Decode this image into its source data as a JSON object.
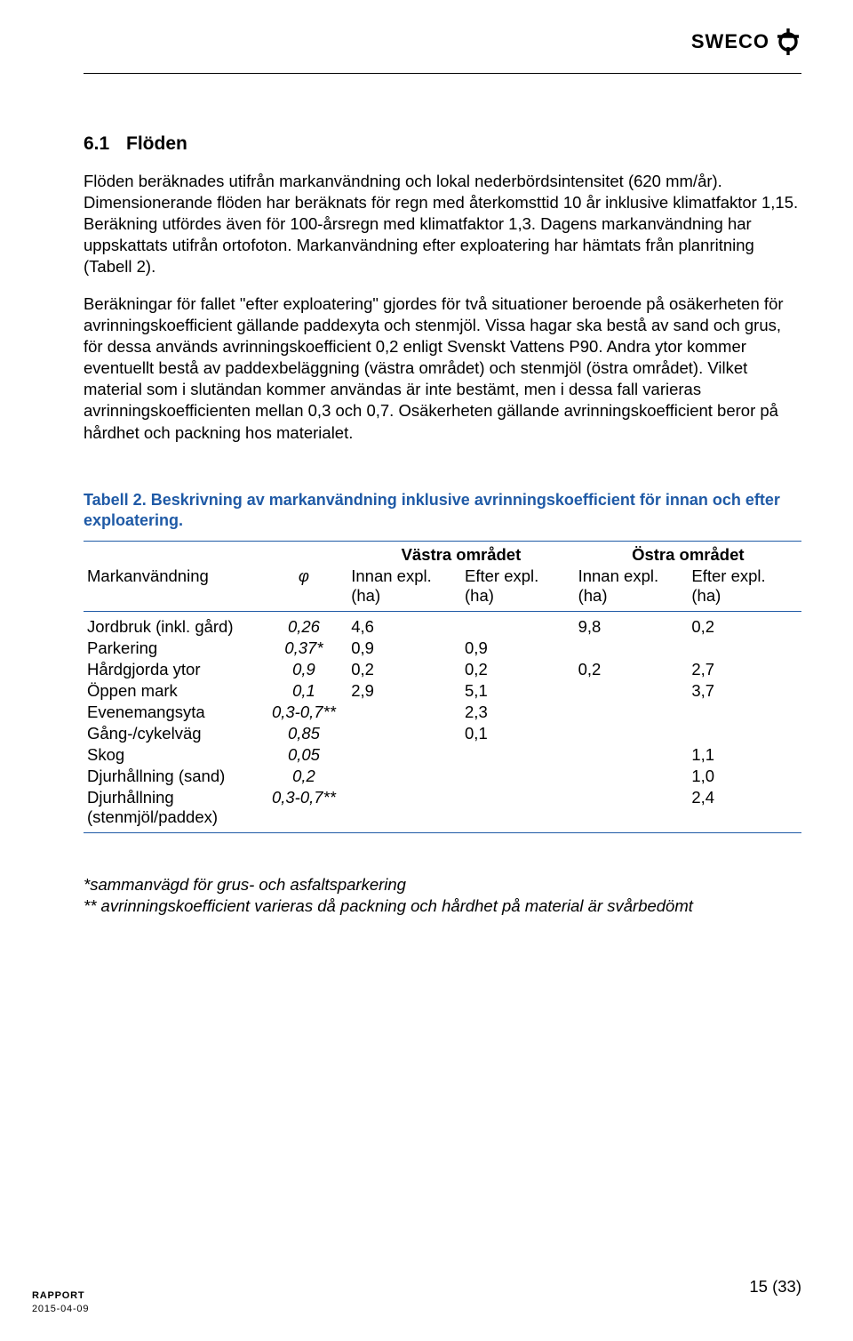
{
  "brand": {
    "name": "SWECO"
  },
  "section": {
    "number": "6.1",
    "title": "Flöden"
  },
  "paragraphs": {
    "p1": "Flöden beräknades utifrån markanvändning och lokal nederbördsintensitet (620 mm/år). Dimensionerande flöden har beräknats för regn med återkomsttid 10 år inklusive klimatfaktor 1,15. Beräkning utfördes även för 100-årsregn med klimatfaktor 1,3. Dagens markanvändning har uppskattats utifrån ortofoton. Markanvändning efter exploatering har hämtats från planritning (Tabell 2).",
    "p2": "Beräkningar för fallet \"efter exploatering\" gjordes för två situationer beroende på osäkerheten för avrinningskoefficient gällande paddexyta och stenmjöl. Vissa hagar ska bestå av sand och grus, för dessa används avrinningskoefficient 0,2 enligt Svenskt Vattens P90. Andra ytor kommer eventuellt bestå av paddexbeläggning (västra området) och stenmjöl (östra området). Vilket material som i slutändan kommer användas är inte bestämt, men i dessa fall varieras avrinningskoefficienten mellan 0,3 och 0,7. Osäkerheten gällande avrinningskoefficient beror på hårdhet och packning hos materialet."
  },
  "table": {
    "caption": "Tabell 2. Beskrivning av markanvändning inklusive avrinningskoefficient för innan och efter exploatering.",
    "super_head": {
      "vastra": "Västra området",
      "ostra": "Östra området"
    },
    "head": {
      "col_mark": "Markanvändning",
      "col_phi": "φ",
      "col_innan": "Innan expl.",
      "col_efter": "Efter expl.",
      "unit": "(ha)"
    },
    "rows": [
      {
        "label": "Jordbruk (inkl. gård)",
        "phi": "0,26",
        "v_innan": "4,6",
        "v_efter": "",
        "o_innan": "9,8",
        "o_efter": "0,2"
      },
      {
        "label": "Parkering",
        "phi": "0,37*",
        "v_innan": "0,9",
        "v_efter": "0,9",
        "o_innan": "",
        "o_efter": ""
      },
      {
        "label": "Hårdgjorda ytor",
        "phi": "0,9",
        "v_innan": "0,2",
        "v_efter": "0,2",
        "o_innan": "0,2",
        "o_efter": "2,7"
      },
      {
        "label": "Öppen mark",
        "phi": "0,1",
        "v_innan": "2,9",
        "v_efter": "5,1",
        "o_innan": "",
        "o_efter": "3,7"
      },
      {
        "label": "Evenemangsyta",
        "phi": "0,3-0,7**",
        "v_innan": "",
        "v_efter": "2,3",
        "o_innan": "",
        "o_efter": ""
      },
      {
        "label": "Gång-/cykelväg",
        "phi": "0,85",
        "v_innan": "",
        "v_efter": "0,1",
        "o_innan": "",
        "o_efter": ""
      },
      {
        "label": "Skog",
        "phi": "0,05",
        "v_innan": "",
        "v_efter": "",
        "o_innan": "",
        "o_efter": "1,1"
      },
      {
        "label": "Djurhållning (sand)",
        "phi": "0,2",
        "v_innan": "",
        "v_efter": "",
        "o_innan": "",
        "o_efter": "1,0"
      },
      {
        "label": "Djurhållning (stenmjöl/paddex)",
        "phi": "0,3-0,7**",
        "v_innan": "",
        "v_efter": "",
        "o_innan": "",
        "o_efter": "2,4"
      }
    ],
    "footnote1": "*sammanvägd för grus- och asfaltsparkering",
    "footnote2": "** avrinningskoefficient varieras då packning och hårdhet på material är svårbedömt"
  },
  "footer": {
    "rapport": "RAPPORT",
    "date": "2015-04-09",
    "page": "15 (33)"
  },
  "colors": {
    "accent": "#1f5aa6",
    "text": "#000000"
  }
}
